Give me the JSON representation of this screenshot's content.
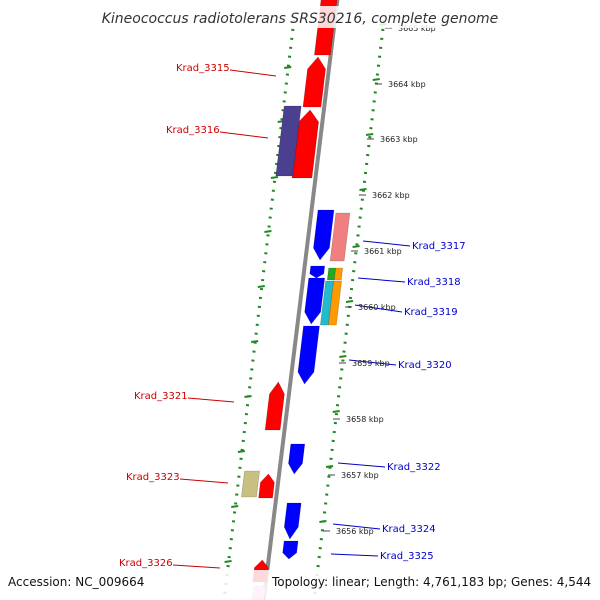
{
  "title": "Kineococcus radiotolerans SRS30216, complete genome",
  "footer": {
    "accession": "Accession: NC_009664",
    "topology": "Topology: linear; Length: 4,761,183 bp; Genes: 4,544"
  },
  "ruler": {
    "unit": "kbp",
    "ticks": [
      "3665 kbp",
      "3664 kbp",
      "3663 kbp",
      "3662 kbp",
      "3661 kbp",
      "3660 kbp",
      "3659 kbp",
      "3658 kbp",
      "3657 kbp",
      "3656 kbp"
    ]
  },
  "colors": {
    "minus_strand_label": "#cc0000",
    "plus_strand_label": "#0000cc",
    "backbone": "#888888",
    "boundary_dots": "#228822"
  },
  "genes": [
    {
      "label": "Krad_3315",
      "strand": "minus",
      "color": "#ff0000"
    },
    {
      "label": "Krad_3316",
      "strand": "minus",
      "color": "#ff0000"
    },
    {
      "label": "Krad_3317",
      "strand": "plus",
      "color": "#0000ff"
    },
    {
      "label": "Krad_3318",
      "strand": "plus",
      "color": "#0000ff"
    },
    {
      "label": "Krad_3319",
      "strand": "plus",
      "color": "#0000ff"
    },
    {
      "label": "Krad_3320",
      "strand": "plus",
      "color": "#0000ff"
    },
    {
      "label": "Krad_3321",
      "strand": "minus",
      "color": "#ff0000"
    },
    {
      "label": "Krad_3322",
      "strand": "plus",
      "color": "#0000ff"
    },
    {
      "label": "Krad_3323",
      "strand": "minus",
      "color": "#ff0000"
    },
    {
      "label": "Krad_3324",
      "strand": "plus",
      "color": "#0000ff"
    },
    {
      "label": "Krad_3325",
      "strand": "plus",
      "color": "#0000ff"
    },
    {
      "label": "Krad_3326",
      "strand": "minus",
      "color": "#ff0000"
    }
  ],
  "feature_colors": {
    "cog_purple": "#4b3f8f",
    "cog_pink": "#f08080",
    "cog_green": "#22aa22",
    "cog_orange": "#ff9900",
    "cog_cyan": "#22bbcc",
    "cog_khaki": "#c8c080",
    "cog_lightpink": "#ffaacc"
  }
}
